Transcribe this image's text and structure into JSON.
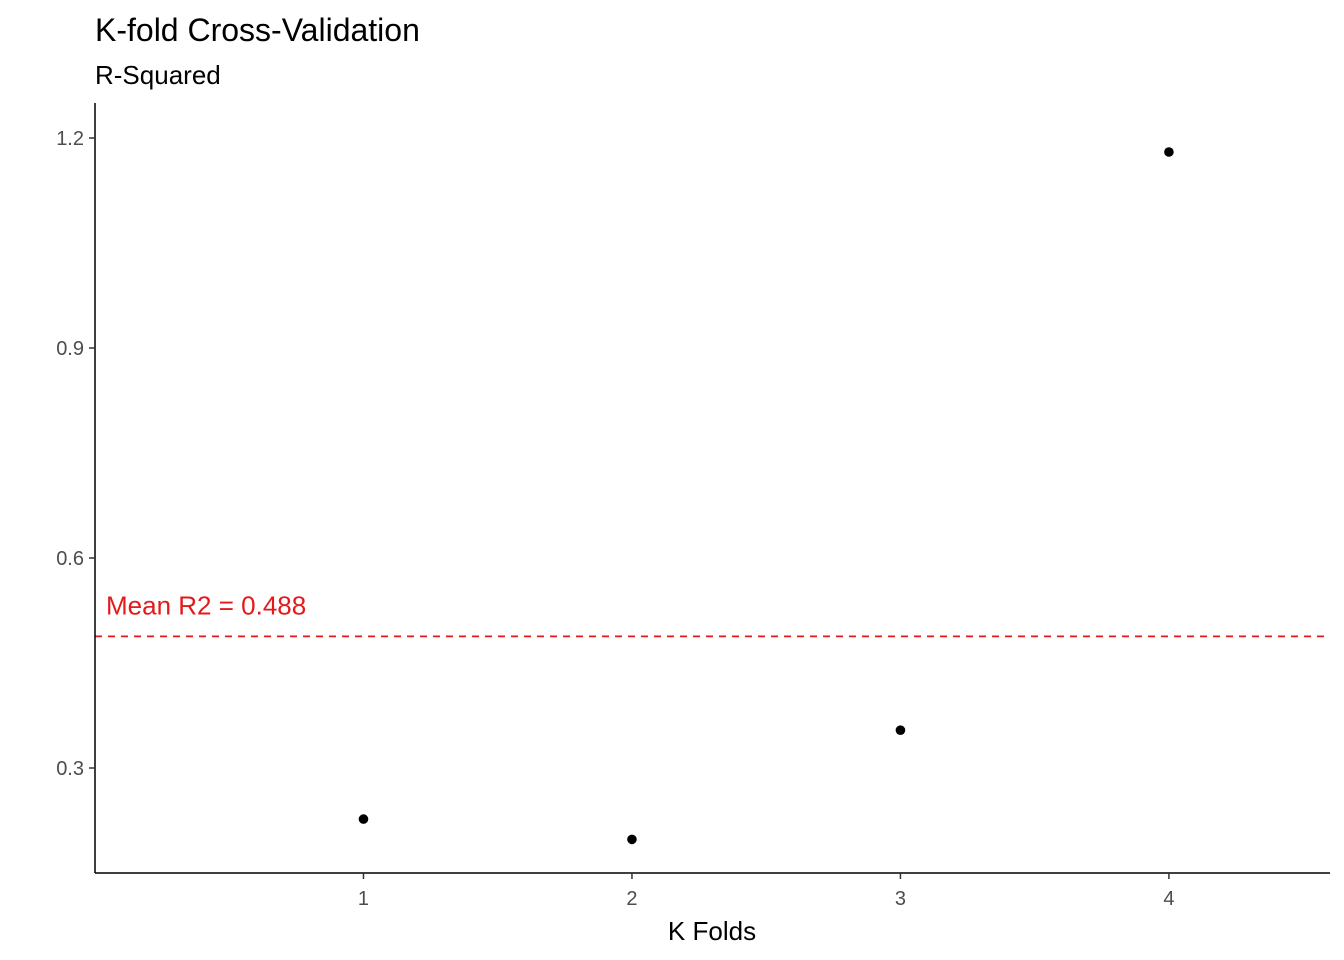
{
  "chart_data": {
    "type": "scatter",
    "title": "K-fold Cross-Validation",
    "subtitle": "R-Squared",
    "xlabel": "K Folds",
    "ylabel": "",
    "x": [
      1,
      2,
      3,
      4
    ],
    "y": [
      0.227,
      0.198,
      0.354,
      1.18
    ],
    "xlim": [
      0,
      4.6
    ],
    "ylim": [
      0.15,
      1.25
    ],
    "xticks": [
      1,
      2,
      3,
      4
    ],
    "xtick_labels": [
      "1",
      "2",
      "3",
      "4"
    ],
    "yticks": [
      0.3,
      0.6,
      0.9,
      1.2
    ],
    "ytick_labels": [
      "0.3",
      "0.6",
      "0.9",
      "1.2"
    ],
    "grid": false,
    "hline": {
      "y": 0.488,
      "style": "dashed",
      "color": "#e31a1c",
      "label": "Mean R2 = 0.488"
    },
    "point_color": "#000000"
  }
}
